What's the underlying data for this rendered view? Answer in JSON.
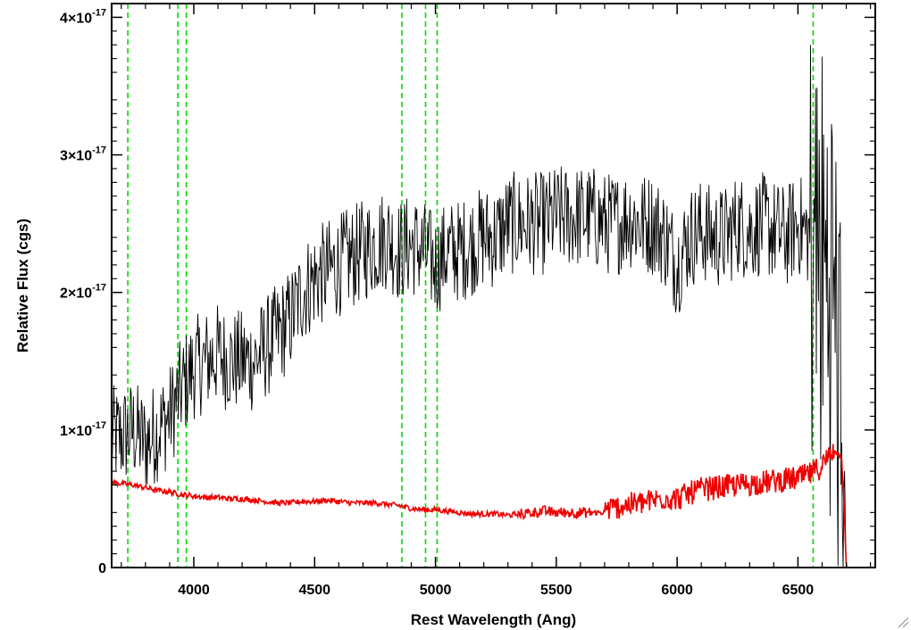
{
  "chart_data": {
    "type": "line",
    "title": "",
    "xlabel": "Rest Wavelength (Ang)",
    "ylabel": "Relative Flux (cgs)",
    "xlim": [
      3660,
      6820
    ],
    "ylim": [
      0,
      4.1e-17
    ],
    "x_ticks": [
      4000,
      4500,
      5000,
      5500,
      6000,
      6500
    ],
    "x_tick_labels": [
      "4000",
      "4500",
      "5000",
      "5500",
      "6000",
      "6500"
    ],
    "y_ticks": [
      0,
      1e-17,
      2e-17,
      3e-17,
      4e-17
    ],
    "y_tick_labels": [
      {
        "mantissa": "0",
        "exponent": ""
      },
      {
        "mantissa": "1×10",
        "exponent": "-17"
      },
      {
        "mantissa": "2×10",
        "exponent": "-17"
      },
      {
        "mantissa": "3×10",
        "exponent": "-17"
      },
      {
        "mantissa": "4×10",
        "exponent": "-17"
      }
    ],
    "grid": false,
    "series": [
      {
        "color": "#000000",
        "values_scale": 1e-17,
        "x": [
          3660,
          3700,
          3750,
          3800,
          3850,
          3900,
          3950,
          4000,
          4050,
          4100,
          4150,
          4200,
          4250,
          4300,
          4350,
          4400,
          4450,
          4500,
          4550,
          4600,
          4650,
          4700,
          4750,
          4800,
          4850,
          4900,
          4950,
          5000,
          5050,
          5100,
          5150,
          5200,
          5250,
          5300,
          5350,
          5400,
          5450,
          5500,
          5550,
          5600,
          5650,
          5700,
          5750,
          5800,
          5850,
          5900,
          5950,
          6000,
          6050,
          6100,
          6150,
          6200,
          6250,
          6300,
          6350,
          6400,
          6450,
          6500,
          6550,
          6600,
          6650,
          6690,
          6700,
          6720
        ],
        "y": [
          0.95,
          0.95,
          1.0,
          0.9,
          1.0,
          1.1,
          1.3,
          1.45,
          1.5,
          1.55,
          1.5,
          1.5,
          1.5,
          1.6,
          1.7,
          1.8,
          2.0,
          2.1,
          2.15,
          2.2,
          2.25,
          2.3,
          2.35,
          2.4,
          2.3,
          2.35,
          2.3,
          2.2,
          2.3,
          2.3,
          2.35,
          2.4,
          2.4,
          2.5,
          2.5,
          2.5,
          2.5,
          2.55,
          2.55,
          2.55,
          2.55,
          2.5,
          2.5,
          2.55,
          2.5,
          2.5,
          2.4,
          2.2,
          2.4,
          2.45,
          2.4,
          2.4,
          2.5,
          2.45,
          2.5,
          2.45,
          2.4,
          2.5,
          2.4,
          2.2,
          2.0,
          0.5,
          0.0,
          0.0
        ]
      },
      {
        "color": "#ee0000",
        "values_scale": 1e-17,
        "x": [
          3660,
          3700,
          3750,
          3800,
          3850,
          3900,
          3950,
          4000,
          4050,
          4100,
          4150,
          4200,
          4250,
          4300,
          4350,
          4400,
          4450,
          4500,
          4550,
          4600,
          4650,
          4700,
          4750,
          4800,
          4850,
          4900,
          4950,
          5000,
          5050,
          5100,
          5150,
          5200,
          5250,
          5300,
          5350,
          5400,
          5450,
          5500,
          5550,
          5600,
          5650,
          5700,
          5750,
          5800,
          5850,
          5900,
          5950,
          6000,
          6050,
          6100,
          6150,
          6200,
          6250,
          6300,
          6350,
          6400,
          6450,
          6500,
          6550,
          6600,
          6650,
          6680,
          6690,
          6700,
          6820
        ],
        "y": [
          0.62,
          0.61,
          0.6,
          0.58,
          0.56,
          0.55,
          0.53,
          0.52,
          0.51,
          0.51,
          0.5,
          0.5,
          0.49,
          0.48,
          0.47,
          0.47,
          0.48,
          0.48,
          0.49,
          0.48,
          0.47,
          0.47,
          0.47,
          0.46,
          0.45,
          0.43,
          0.42,
          0.42,
          0.41,
          0.4,
          0.39,
          0.39,
          0.39,
          0.38,
          0.39,
          0.4,
          0.41,
          0.4,
          0.4,
          0.4,
          0.4,
          0.4,
          0.42,
          0.44,
          0.45,
          0.47,
          0.49,
          0.48,
          0.52,
          0.55,
          0.56,
          0.57,
          0.58,
          0.59,
          0.6,
          0.61,
          0.62,
          0.63,
          0.66,
          0.72,
          0.85,
          0.8,
          0.5,
          0.0,
          0.0
        ]
      }
    ],
    "vertical_lines": {
      "color": "#00dd00",
      "style": "dashed",
      "x": [
        3727,
        3934,
        3969,
        4861,
        4959,
        5007,
        6563
      ]
    }
  }
}
